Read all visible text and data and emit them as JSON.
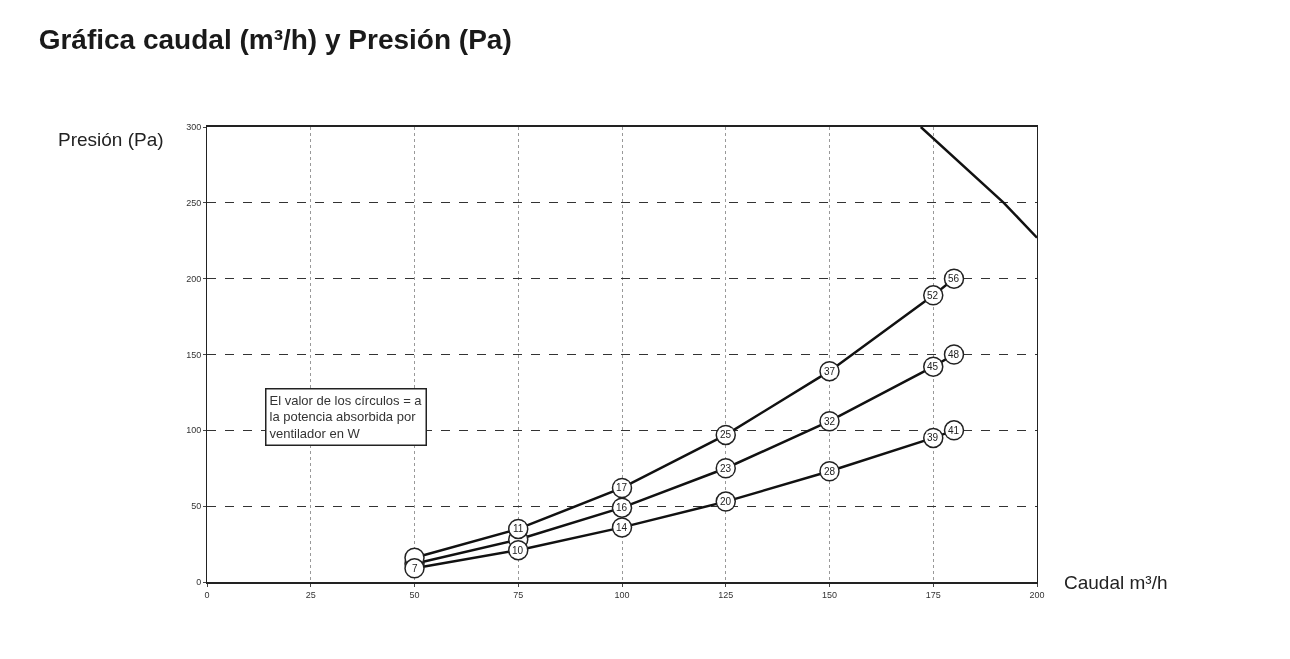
{
  "chart_data": {
    "type": "line",
    "title": "Gráfica caudal (m³/h) y Presión (Pa)",
    "xlabel": "Caudal m³/h",
    "ylabel": "Presión (Pa)",
    "x": [
      50,
      75,
      100,
      125,
      150,
      175,
      180
    ],
    "series": [
      {
        "color": "#111111",
        "values": [
          16,
          35,
          62,
          97,
          139,
          189,
          200
        ],
        "marker": "circle"
      },
      {
        "color": "#111111",
        "values": [
          12,
          28,
          49,
          75,
          106,
          142,
          150
        ],
        "marker": "circle"
      },
      {
        "color": "#111111",
        "values": [
          9,
          21,
          36,
          53,
          73,
          95,
          100
        ],
        "marker": "circle"
      },
      {
        "color": "#111111",
        "x": [
          172,
          192,
          200
        ],
        "values": [
          300,
          250,
          227
        ],
        "marker": "none"
      }
    ],
    "xlim": [
      0,
      200
    ],
    "xticks": [
      0,
      25,
      50,
      75,
      100,
      125,
      150,
      175,
      200
    ],
    "ylim": [
      0,
      300
    ],
    "yticks": [
      0,
      50,
      100,
      150,
      200,
      250,
      300
    ],
    "grid": true,
    "annotations": [
      "El valor de los círculos = a\nla potencia absorbida por\nventilador en W",
      {
        "text": "11",
        "x": 75,
        "y": 35
      },
      {
        "text": "17",
        "x": 100,
        "y": 62
      },
      {
        "text": "25",
        "x": 125,
        "y": 97
      },
      {
        "text": "37",
        "x": 150,
        "y": 139
      },
      {
        "text": "52",
        "x": 175,
        "y": 189
      },
      {
        "text": "56",
        "x": 180,
        "y": 200
      },
      {
        "text": "16",
        "x": 100,
        "y": 49
      },
      {
        "text": "23",
        "x": 125,
        "y": 75
      },
      {
        "text": "32",
        "x": 150,
        "y": 106
      },
      {
        "text": "45",
        "x": 175,
        "y": 142
      },
      {
        "text": "48",
        "x": 180,
        "y": 150
      },
      {
        "text": "7",
        "x": 50,
        "y": 9
      },
      {
        "text": "10",
        "x": 75,
        "y": 21
      },
      {
        "text": "14",
        "x": 100,
        "y": 36
      },
      {
        "text": "20",
        "x": 125,
        "y": 53
      },
      {
        "text": "28",
        "x": 150,
        "y": 73
      },
      {
        "text": "39",
        "x": 175,
        "y": 95
      },
      {
        "text": "41",
        "x": 180,
        "y": 100
      }
    ]
  }
}
